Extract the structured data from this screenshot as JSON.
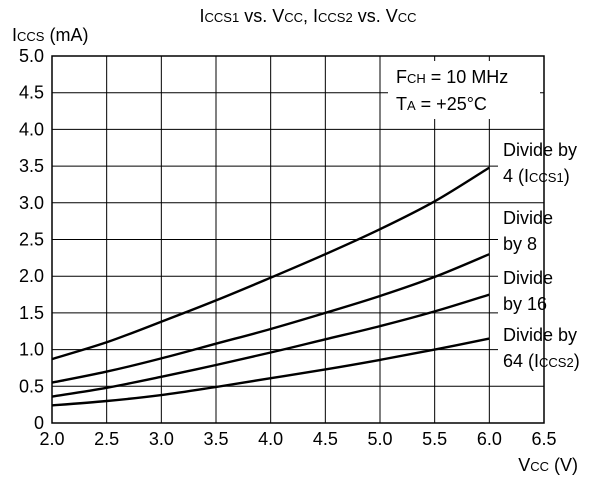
{
  "chart_data": {
    "type": "line",
    "title": {
      "parts": [
        {
          "t": "I",
          "s": 0
        },
        {
          "t": "CCS1",
          "s": 1
        },
        {
          "t": " vs. V",
          "s": 0
        },
        {
          "t": "CC",
          "s": 1
        },
        {
          "t": ", I",
          "s": 0
        },
        {
          "t": "CCS2",
          "s": 1
        },
        {
          "t": " vs. V",
          "s": 0
        },
        {
          "t": "CC",
          "s": 1
        }
      ]
    },
    "ylabel": {
      "parts": [
        {
          "t": "I",
          "s": 0
        },
        {
          "t": "CCS",
          "s": 1
        },
        {
          "t": " (mA)",
          "s": 0
        }
      ]
    },
    "xlabel": {
      "parts": [
        {
          "t": "V",
          "s": 0
        },
        {
          "t": "CC",
          "s": 1
        },
        {
          "t": " (V)",
          "s": 0
        }
      ]
    },
    "xlim": [
      2.0,
      6.5
    ],
    "ylim": [
      0,
      5.0
    ],
    "xticks": [
      "2.0",
      "2.5",
      "3.0",
      "3.5",
      "4.0",
      "4.5",
      "5.0",
      "5.5",
      "6.0",
      "6.5"
    ],
    "yticks": [
      "0",
      "0.5",
      "1.0",
      "1.5",
      "2.0",
      "2.5",
      "3.0",
      "3.5",
      "4.0",
      "4.5",
      "5.0"
    ],
    "grid": true,
    "conditions": [
      {
        "parts": [
          {
            "t": "F",
            "s": 0
          },
          {
            "t": "CH",
            "s": 1
          },
          {
            "t": " = 10 MHz",
            "s": 0
          }
        ]
      },
      {
        "parts": [
          {
            "t": "T",
            "s": 0
          },
          {
            "t": "A",
            "s": 1
          },
          {
            "t": " = +25°C",
            "s": 0
          }
        ]
      }
    ],
    "series": [
      {
        "label_lines": [
          {
            "parts": [
              {
                "t": "Divide by",
                "s": 0
              }
            ]
          },
          {
            "parts": [
              {
                "t": "4 (I",
                "s": 0
              },
              {
                "t": "CCS1",
                "s": 1
              },
              {
                "t": ")",
                "s": 0
              }
            ]
          }
        ],
        "x": [
          2.0,
          2.5,
          3.0,
          3.5,
          4.0,
          4.5,
          5.0,
          5.5,
          6.0
        ],
        "y": [
          0.87,
          1.1,
          1.38,
          1.67,
          1.98,
          2.3,
          2.64,
          3.02,
          3.48
        ]
      },
      {
        "label_lines": [
          {
            "parts": [
              {
                "t": "Divide",
                "s": 0
              }
            ]
          },
          {
            "parts": [
              {
                "t": "by 8",
                "s": 0
              }
            ]
          }
        ],
        "x": [
          2.0,
          2.5,
          3.0,
          3.5,
          4.0,
          4.5,
          5.0,
          5.5,
          6.0
        ],
        "y": [
          0.55,
          0.7,
          0.88,
          1.08,
          1.28,
          1.5,
          1.73,
          1.99,
          2.3
        ]
      },
      {
        "label_lines": [
          {
            "parts": [
              {
                "t": "Divide",
                "s": 0
              }
            ]
          },
          {
            "parts": [
              {
                "t": "by 16",
                "s": 0
              }
            ]
          }
        ],
        "x": [
          2.0,
          2.5,
          3.0,
          3.5,
          4.0,
          4.5,
          5.0,
          5.5,
          6.0
        ],
        "y": [
          0.36,
          0.48,
          0.63,
          0.79,
          0.96,
          1.14,
          1.32,
          1.52,
          1.75
        ]
      },
      {
        "label_lines": [
          {
            "parts": [
              {
                "t": "Divide by",
                "s": 0
              }
            ]
          },
          {
            "parts": [
              {
                "t": "64 (I",
                "s": 0
              },
              {
                "t": "CCS2",
                "s": 1
              },
              {
                "t": ")",
                "s": 0
              }
            ]
          }
        ],
        "x": [
          2.0,
          2.5,
          3.0,
          3.5,
          4.0,
          4.5,
          5.0,
          5.5,
          6.0
        ],
        "y": [
          0.24,
          0.3,
          0.38,
          0.49,
          0.61,
          0.73,
          0.86,
          1.0,
          1.15
        ]
      }
    ]
  }
}
